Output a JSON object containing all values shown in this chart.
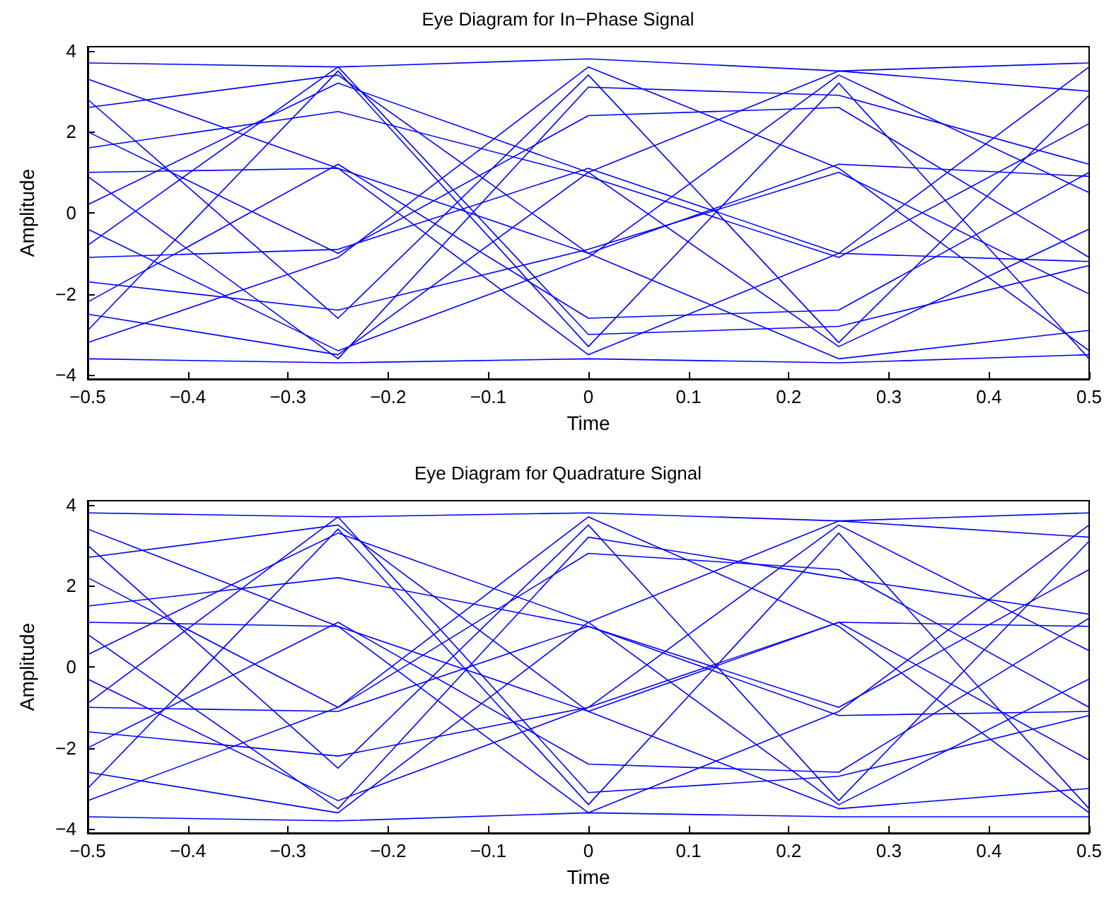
{
  "chart_data": [
    {
      "type": "line",
      "title": "Eye Diagram for In−Phase Signal",
      "xlabel": "Time",
      "ylabel": "Amplitude",
      "x": [
        -0.5,
        -0.25,
        0,
        0.25,
        0.5
      ],
      "xlim": [
        -0.5,
        0.5
      ],
      "xticks": [
        {
          "value": -0.5,
          "label": "−0.5"
        },
        {
          "value": -0.4,
          "label": "−0.4"
        },
        {
          "value": -0.3,
          "label": "−0.3"
        },
        {
          "value": -0.2,
          "label": "−0.2"
        },
        {
          "value": -0.1,
          "label": "−0.1"
        },
        0,
        0.1,
        0.2,
        0.3,
        0.4,
        0.5
      ],
      "ylim": [
        -4.1,
        4.1
      ],
      "yticks": [
        -4,
        -2,
        0,
        2,
        4
      ],
      "grid": false,
      "marker": "none",
      "line_style": "solid",
      "series": [
        {
          "color": "#0000ff",
          "values": [
            3.7,
            3.6,
            3.8,
            3.5,
            3.7
          ]
        },
        {
          "color": "#0000ff",
          "values": [
            -3.6,
            -3.7,
            -3.6,
            -3.7,
            -3.5
          ]
        },
        {
          "color": "#0000ff",
          "values": [
            2.8,
            -2.6,
            3.4,
            -3.2,
            2.9
          ]
        },
        {
          "color": "#0000ff",
          "values": [
            -2.9,
            3.5,
            -3.3,
            3.2,
            -3.6
          ]
        },
        {
          "color": "#0000ff",
          "values": [
            1.0,
            1.1,
            -1.0,
            1.2,
            0.9
          ]
        },
        {
          "color": "#0000ff",
          "values": [
            -1.1,
            -0.9,
            1.1,
            -1.0,
            -1.2
          ]
        },
        {
          "color": "#0000ff",
          "values": [
            2.0,
            -1.0,
            2.4,
            2.6,
            -1.1
          ]
        },
        {
          "color": "#0000ff",
          "values": [
            -2.2,
            1.2,
            -2.6,
            -2.4,
            1.0
          ]
        },
        {
          "color": "#0000ff",
          "values": [
            0.2,
            3.2,
            1.0,
            -3.3,
            -0.4
          ]
        },
        {
          "color": "#0000ff",
          "values": [
            -0.4,
            -3.4,
            -1.1,
            3.4,
            0.5
          ]
        },
        {
          "color": "#0000ff",
          "values": [
            3.3,
            1.1,
            -3.5,
            -1.0,
            3.6
          ]
        },
        {
          "color": "#0000ff",
          "values": [
            -3.2,
            -1.1,
            3.6,
            1.1,
            -3.4
          ]
        },
        {
          "color": "#0000ff",
          "values": [
            1.6,
            2.5,
            0.9,
            -1.1,
            2.2
          ]
        },
        {
          "color": "#0000ff",
          "values": [
            -1.7,
            -2.4,
            -0.9,
            1.0,
            -2.0
          ]
        },
        {
          "color": "#0000ff",
          "values": [
            0.9,
            -3.6,
            3.1,
            2.9,
            1.2
          ]
        },
        {
          "color": "#0000ff",
          "values": [
            -0.8,
            3.6,
            -3.0,
            -2.8,
            -1.3
          ]
        },
        {
          "color": "#0000ff",
          "values": [
            2.6,
            3.4,
            -1.0,
            -3.6,
            -2.9
          ]
        },
        {
          "color": "#0000ff",
          "values": [
            -2.5,
            -3.5,
            1.0,
            3.5,
            3.0
          ]
        }
      ]
    },
    {
      "type": "line",
      "title": "Eye Diagram for Quadrature Signal",
      "xlabel": "Time",
      "ylabel": "Amplitude",
      "x": [
        -0.5,
        -0.25,
        0,
        0.25,
        0.5
      ],
      "xlim": [
        -0.5,
        0.5
      ],
      "xticks": [
        {
          "value": -0.5,
          "label": "−0.5"
        },
        {
          "value": -0.4,
          "label": "−0.4"
        },
        {
          "value": -0.3,
          "label": "−0.3"
        },
        {
          "value": -0.2,
          "label": "−0.2"
        },
        {
          "value": -0.1,
          "label": "−0.1"
        },
        0,
        0.1,
        0.2,
        0.3,
        0.4,
        0.5
      ],
      "ylim": [
        -4.1,
        4.1
      ],
      "yticks": [
        -4,
        -2,
        0,
        2,
        4
      ],
      "grid": false,
      "marker": "none",
      "line_style": "solid",
      "series": [
        {
          "color": "#0000ff",
          "values": [
            3.8,
            3.7,
            3.8,
            3.6,
            3.8
          ]
        },
        {
          "color": "#0000ff",
          "values": [
            -3.7,
            -3.8,
            -3.6,
            -3.7,
            -3.7
          ]
        },
        {
          "color": "#0000ff",
          "values": [
            3.0,
            -2.5,
            3.5,
            -3.3,
            3.1
          ]
        },
        {
          "color": "#0000ff",
          "values": [
            -3.0,
            3.4,
            -3.4,
            3.3,
            -3.5
          ]
        },
        {
          "color": "#0000ff",
          "values": [
            1.1,
            1.0,
            -1.1,
            1.1,
            1.0
          ]
        },
        {
          "color": "#0000ff",
          "values": [
            -1.0,
            -1.1,
            1.0,
            -1.2,
            -1.1
          ]
        },
        {
          "color": "#0000ff",
          "values": [
            2.2,
            -1.0,
            2.8,
            2.4,
            -1.0
          ]
        },
        {
          "color": "#0000ff",
          "values": [
            -2.0,
            1.1,
            -2.4,
            -2.6,
            1.2
          ]
        },
        {
          "color": "#0000ff",
          "values": [
            0.3,
            3.3,
            1.1,
            -3.4,
            -0.3
          ]
        },
        {
          "color": "#0000ff",
          "values": [
            -0.3,
            -3.3,
            -1.0,
            3.5,
            0.4
          ]
        },
        {
          "color": "#0000ff",
          "values": [
            3.4,
            1.0,
            -3.6,
            -1.1,
            3.5
          ]
        },
        {
          "color": "#0000ff",
          "values": [
            -3.3,
            -1.0,
            3.7,
            1.0,
            -3.6
          ]
        },
        {
          "color": "#0000ff",
          "values": [
            1.5,
            2.2,
            1.0,
            -1.0,
            2.4
          ]
        },
        {
          "color": "#0000ff",
          "values": [
            -1.6,
            -2.2,
            -1.0,
            1.1,
            -2.3
          ]
        },
        {
          "color": "#0000ff",
          "values": [
            0.8,
            -3.5,
            3.2,
            2.2,
            1.3
          ]
        },
        {
          "color": "#0000ff",
          "values": [
            -0.9,
            3.7,
            -3.1,
            -2.7,
            -1.2
          ]
        },
        {
          "color": "#0000ff",
          "values": [
            2.7,
            3.5,
            -1.1,
            -3.5,
            -3.0
          ]
        },
        {
          "color": "#0000ff",
          "values": [
            -2.6,
            -3.6,
            1.1,
            3.6,
            3.2
          ]
        }
      ]
    }
  ]
}
